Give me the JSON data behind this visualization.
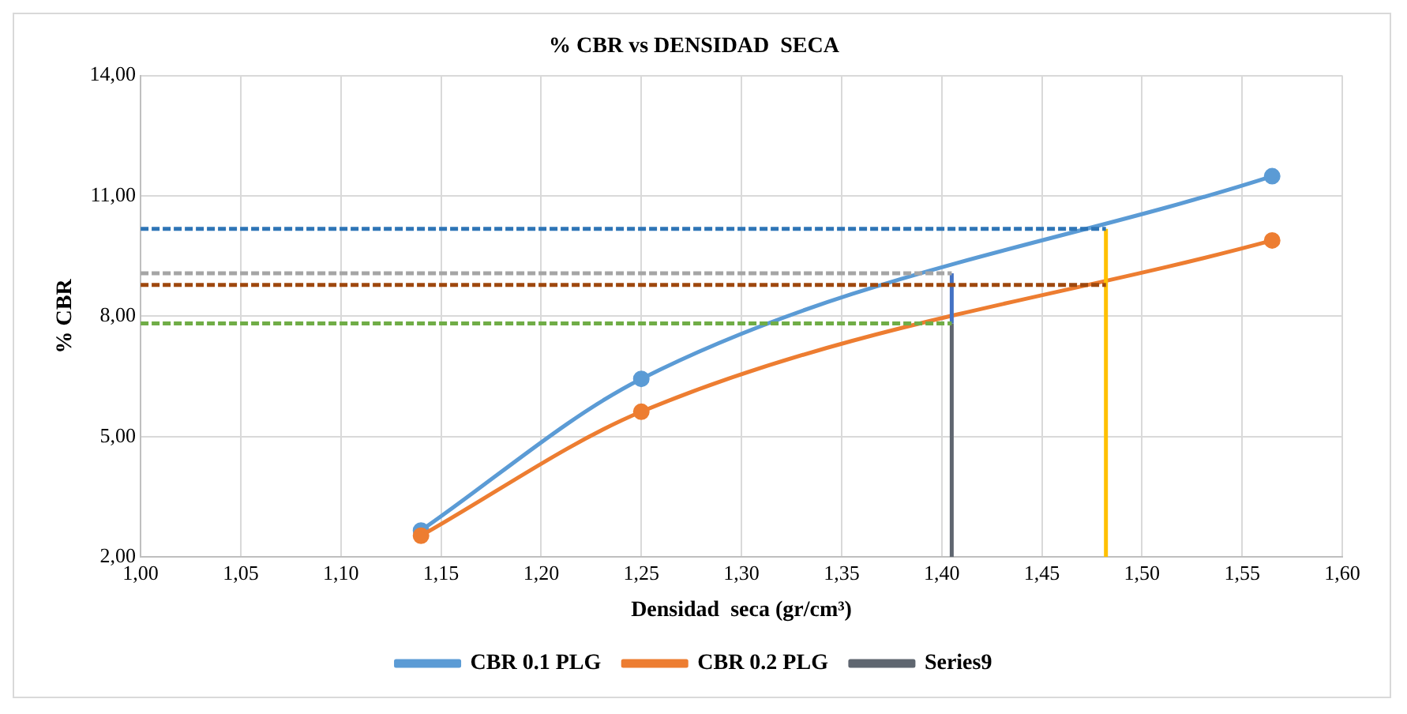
{
  "chart_data": {
    "type": "line",
    "title": "% CBR vs DENSIDAD  SECA",
    "xlabel": "Densidad  seca (gr/cm³)",
    "ylabel": "% CBR",
    "xlim": [
      1.0,
      1.6
    ],
    "ylim": [
      2,
      14
    ],
    "xticks": [
      {
        "value": 1.0,
        "label": "1,00"
      },
      {
        "value": 1.05,
        "label": "1,05"
      },
      {
        "value": 1.1,
        "label": "1,10"
      },
      {
        "value": 1.15,
        "label": "1,15"
      },
      {
        "value": 1.2,
        "label": "1,20"
      },
      {
        "value": 1.25,
        "label": "1,25"
      },
      {
        "value": 1.3,
        "label": "1,30"
      },
      {
        "value": 1.35,
        "label": "1,35"
      },
      {
        "value": 1.4,
        "label": "1,40"
      },
      {
        "value": 1.45,
        "label": "1,45"
      },
      {
        "value": 1.5,
        "label": "1,50"
      },
      {
        "value": 1.55,
        "label": "1,55"
      },
      {
        "value": 1.6,
        "label": "1,60"
      }
    ],
    "yticks": [
      {
        "value": 2,
        "label": "2,00"
      },
      {
        "value": 5,
        "label": "5,00"
      },
      {
        "value": 8,
        "label": "8,00"
      },
      {
        "value": 11,
        "label": "11,00"
      },
      {
        "value": 14,
        "label": "14,00"
      }
    ],
    "grid": true,
    "legend": "bottom",
    "series": [
      {
        "name": "CBR 0.1 PLG",
        "color": "#5b9bd5",
        "x": [
          1.14,
          1.25,
          1.565
        ],
        "values": [
          2.66,
          6.44,
          11.49
        ],
        "marker": "circle",
        "line_style": "solid"
      },
      {
        "name": "CBR 0.2 PLG",
        "color": "#ed7d31",
        "x": [
          1.14,
          1.25,
          1.565
        ],
        "values": [
          2.53,
          5.62,
          9.89
        ],
        "marker": "circle",
        "line_style": "solid"
      },
      {
        "name": "Series9",
        "color": "#5f6670",
        "x": [
          1.405,
          1.405
        ],
        "values": [
          2,
          7.82
        ],
        "marker": "none",
        "line_style": "solid"
      },
      {
        "color": "#4472c4",
        "x": [
          1.405,
          1.405
        ],
        "values": [
          7.82,
          9.07
        ],
        "marker": "none",
        "line_style": "solid"
      },
      {
        "color": "#ffc000",
        "x": [
          1.482,
          1.482
        ],
        "values": [
          2,
          10.18
        ],
        "marker": "none",
        "line_style": "solid"
      },
      {
        "color": "#2e75b6",
        "x": [
          1.0,
          1.482
        ],
        "values": [
          10.18,
          10.18
        ],
        "marker": "none",
        "line_style": "dashed"
      },
      {
        "color": "#a5a5a5",
        "x": [
          1.0,
          1.405
        ],
        "values": [
          9.07,
          9.07
        ],
        "marker": "none",
        "line_style": "dashed"
      },
      {
        "color": "#9e480e",
        "x": [
          1.0,
          1.482
        ],
        "values": [
          8.78,
          8.78
        ],
        "marker": "none",
        "line_style": "dashed"
      },
      {
        "color": "#70ad47",
        "x": [
          1.0,
          1.405
        ],
        "values": [
          7.82,
          7.82
        ],
        "marker": "none",
        "line_style": "dashed"
      }
    ]
  }
}
